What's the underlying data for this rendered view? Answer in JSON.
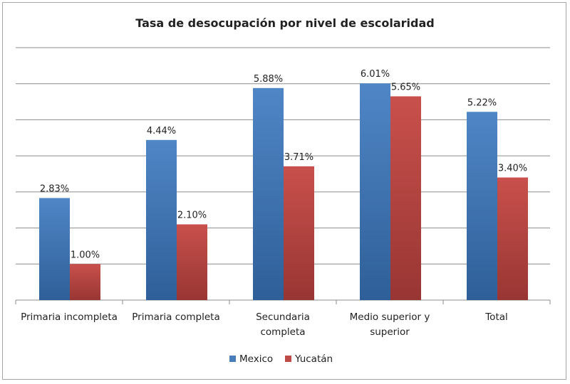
{
  "chart_data": {
    "type": "bar",
    "title": "Tasa de desocupación por nivel de escolaridad",
    "categories": [
      [
        "Primaria incompleta"
      ],
      [
        "Primaria completa"
      ],
      [
        "Secundaria",
        "completa"
      ],
      [
        "Medio superior y",
        "superior"
      ],
      [
        "Total"
      ]
    ],
    "series": [
      {
        "name": "Mexico",
        "values": [
          2.83,
          4.44,
          5.88,
          6.01,
          5.22
        ],
        "labels": [
          "2.83%",
          "4.44%",
          "5.88%",
          "6.01%",
          "5.22%"
        ],
        "color": "#4a7ebb"
      },
      {
        "name": "Yucatán",
        "values": [
          1.0,
          2.1,
          3.71,
          5.65,
          3.4
        ],
        "labels": [
          "1.00%",
          "2.10%",
          "3.71%",
          "5.65%",
          "3.40%"
        ],
        "color": "#be4b48"
      }
    ],
    "ylim": [
      0,
      7
    ],
    "grid": true,
    "y_tick_labels_shown": false,
    "legend": "bottom"
  }
}
